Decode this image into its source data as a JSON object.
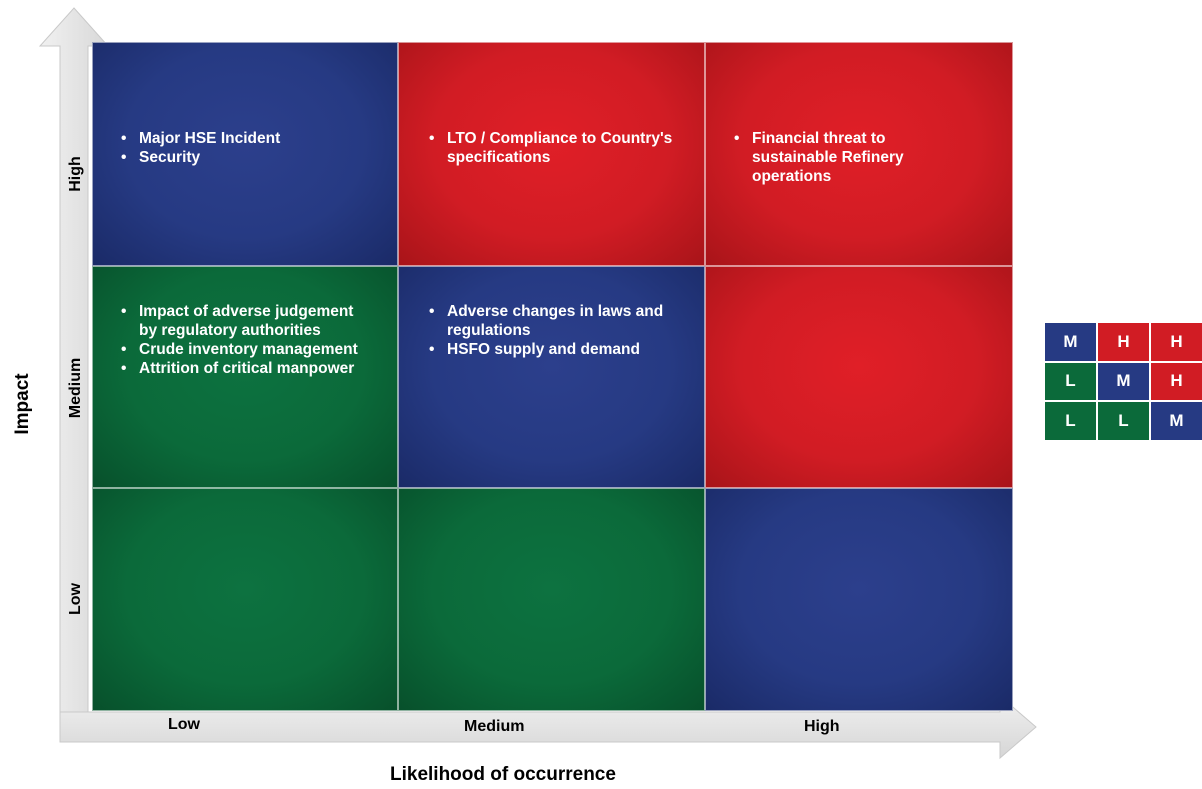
{
  "axes": {
    "y_title": "Impact",
    "x_title": "Likelihood of occurrence",
    "y_levels": [
      "High",
      "Medium",
      "Low"
    ],
    "x_levels": [
      "Low",
      "Medium",
      "High"
    ]
  },
  "matrix": {
    "rows": [
      {
        "impact": "High",
        "cells": [
          {
            "color": "blue",
            "items": [
              "Major HSE Incident",
              "Security"
            ]
          },
          {
            "color": "red",
            "items": [
              "LTO / Compliance to Country's specifications"
            ]
          },
          {
            "color": "red",
            "items": [
              "Financial threat to sustainable Refinery operations"
            ]
          }
        ]
      },
      {
        "impact": "Medium",
        "cells": [
          {
            "color": "green",
            "items": [
              "Impact of adverse judgement by regulatory authorities",
              "Crude inventory management",
              "Attrition of critical manpower"
            ]
          },
          {
            "color": "blue",
            "items": [
              "Adverse changes in laws and regulations",
              "HSFO supply and demand"
            ]
          },
          {
            "color": "red",
            "items": []
          }
        ]
      },
      {
        "impact": "Low",
        "cells": [
          {
            "color": "green",
            "items": []
          },
          {
            "color": "green",
            "items": []
          },
          {
            "color": "blue",
            "items": []
          }
        ]
      }
    ]
  },
  "legend": {
    "rows": [
      [
        {
          "label": "M",
          "color": "blue"
        },
        {
          "label": "H",
          "color": "red"
        },
        {
          "label": "H",
          "color": "red"
        }
      ],
      [
        {
          "label": "L",
          "color": "green"
        },
        {
          "label": "M",
          "color": "blue"
        },
        {
          "label": "H",
          "color": "red"
        }
      ],
      [
        {
          "label": "L",
          "color": "green"
        },
        {
          "label": "L",
          "color": "green"
        },
        {
          "label": "M",
          "color": "blue"
        }
      ]
    ]
  },
  "colors": {
    "red": "#d11c24",
    "blue": "#263a83",
    "green": "#0b6a3a",
    "axis": "#e4e4e4"
  }
}
